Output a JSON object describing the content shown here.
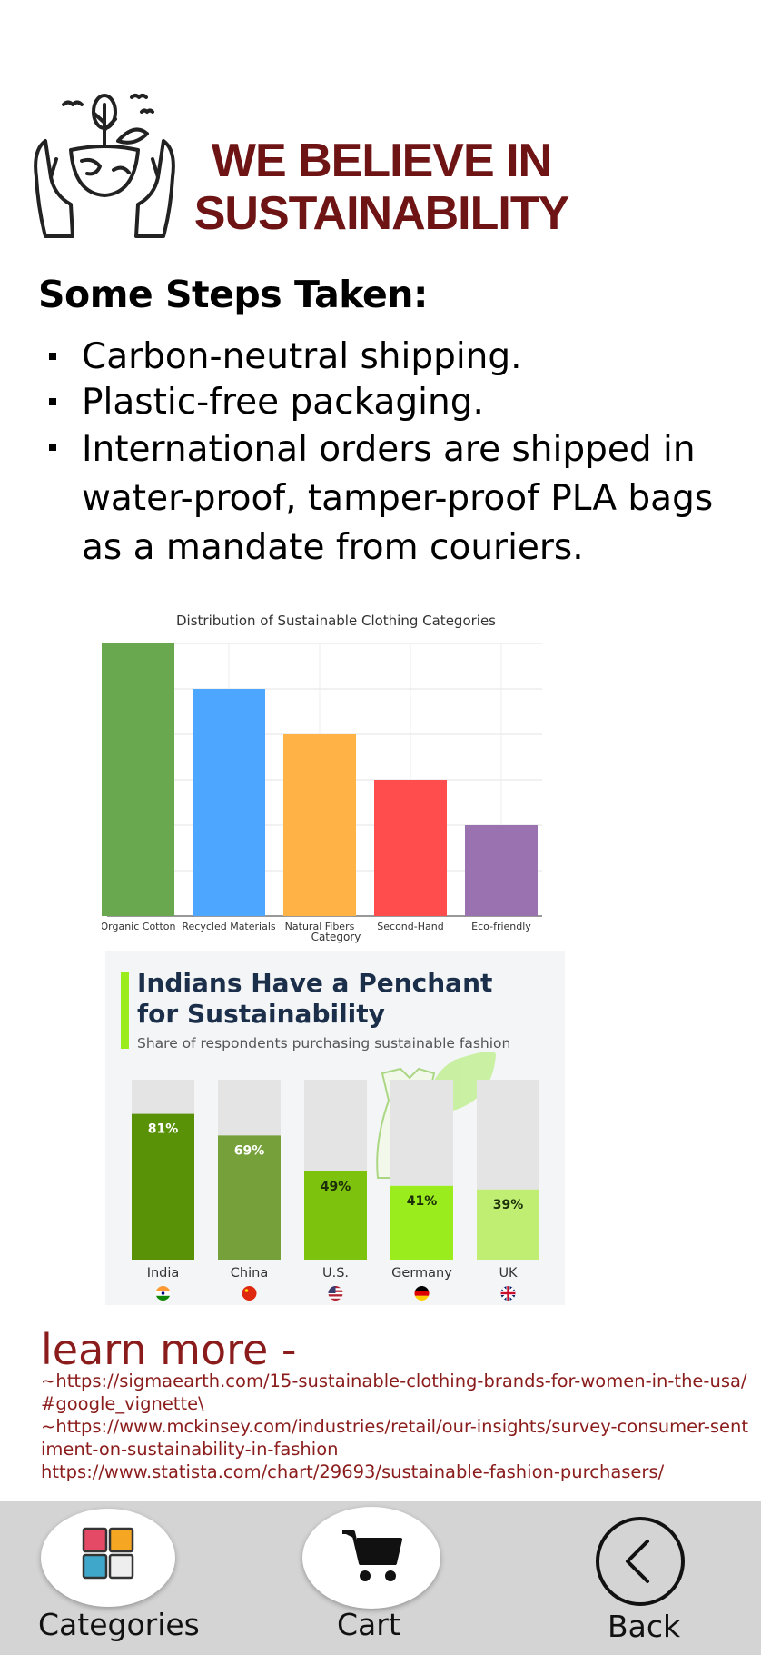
{
  "header": {
    "logo_icon": "hands-holding-earth-icon",
    "title_line1": "WE BELIEVE IN",
    "title_line2": "SUSTAINABILITY"
  },
  "steps": {
    "heading": "Some Steps Taken:",
    "items": [
      "Carbon-neutral shipping.",
      "Plastic-free packaging.",
      "International orders are shipped in water-proof, tamper-proof PLA bags as a mandate from couriers."
    ]
  },
  "chart_data": [
    {
      "type": "bar",
      "title": "Distribution of Sustainable Clothing Categories",
      "xlabel": "Category",
      "ylabel": "",
      "categories": [
        "Organic Cotton",
        "Recycled Materials",
        "Natural Fibers",
        "Second-Hand",
        "Eco-friendly"
      ],
      "values": [
        30,
        25,
        20,
        15,
        10
      ],
      "colors": [
        "#6aa84f",
        "#4da6ff",
        "#ffb347",
        "#ff4d4d",
        "#9b72b0"
      ],
      "ylim": [
        0,
        30
      ],
      "grid": true
    },
    {
      "type": "bar",
      "title": "Indians Have a Penchant for Sustainability",
      "subtitle": "Share of respondents purchasing sustainable fashion",
      "categories": [
        "India",
        "China",
        "U.S.",
        "Germany",
        "UK"
      ],
      "values": [
        81,
        69,
        49,
        41,
        39
      ],
      "value_labels": [
        "81%",
        "69%",
        "49%",
        "41%",
        "39%"
      ],
      "colors": [
        "#5a9207",
        "#76a13a",
        "#7dc20c",
        "#9aec1c",
        "#bfee72"
      ],
      "ylim": [
        0,
        100
      ],
      "background_bar_color": "#e4e4e4",
      "flag_icons": [
        "india-flag-icon",
        "china-flag-icon",
        "us-flag-icon",
        "germany-flag-icon",
        "uk-flag-icon"
      ],
      "decoration_icon": "dress-and-leaf-icon"
    }
  ],
  "learn_more": {
    "title": "learn more -",
    "links": [
      "~https://sigmaearth.com/15-sustainable-clothing-brands-for-women-in-the-usa/#google_vignette\\",
      "~https://www.mckinsey.com/industries/retail/our-insights/survey-consumer-sentiment-on-sustainability-in-fashion",
      "https://www.statista.com/chart/29693/sustainable-fashion-purchasers/"
    ]
  },
  "nav": {
    "categories": {
      "label": "Categories",
      "icon": "categories-grid-icon"
    },
    "cart": {
      "label": "Cart",
      "icon": "cart-icon"
    },
    "back": {
      "label": "Back",
      "icon": "chevron-left-icon"
    }
  }
}
